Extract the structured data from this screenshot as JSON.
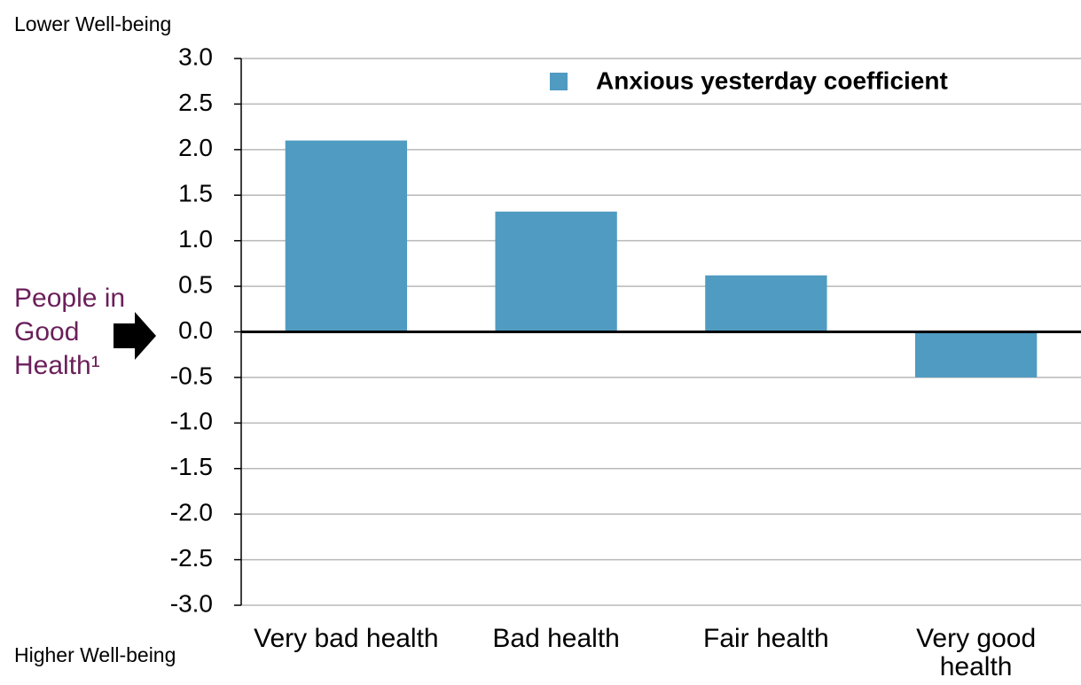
{
  "chart_data": {
    "type": "bar",
    "categories": [
      "Very bad health",
      "Bad health",
      "Fair health",
      "Very good health"
    ],
    "series": [
      {
        "name": "Anxious yesterday coefficient",
        "color": "#4f9bc1",
        "values": [
          2.1,
          1.32,
          0.62,
          -0.5
        ]
      }
    ],
    "ylim": [
      -3,
      3
    ],
    "yticks": [
      {
        "value": 3,
        "label": "3.0"
      },
      2.5,
      {
        "value": 2,
        "label": "2.0"
      },
      1.5,
      {
        "value": 1,
        "label": "1.0"
      },
      0.5,
      {
        "value": 0,
        "label": "0.0"
      },
      -0.5,
      {
        "value": -1,
        "label": "-1.0"
      },
      -1.5,
      {
        "value": -2,
        "label": "-2.0"
      },
      -2.5,
      {
        "value": -3,
        "label": "-3.0"
      }
    ],
    "grid": true,
    "legend": "top-right",
    "annotations": {
      "top": "Lower Well-being",
      "bottom": "Higher Well-being",
      "reference": "People in Good Health¹"
    }
  }
}
